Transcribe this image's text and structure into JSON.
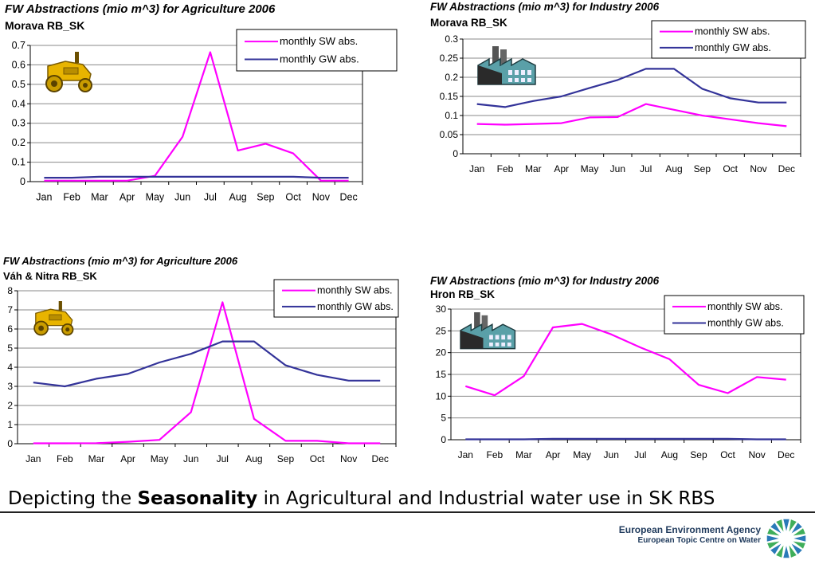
{
  "caption": {
    "prefix": "Depicting the ",
    "bold": "Seasonality",
    "suffix": " in Agricultural and Industrial water use in SK RBS"
  },
  "footer": {
    "agency": "European Environment Agency",
    "centre": "European Topic Centre on Water"
  },
  "colors": {
    "sw": "#ff00ff",
    "gw": "#333399"
  },
  "icons": {
    "agriculture": "tractor-icon",
    "industry": "factory-icon"
  },
  "chart_data": [
    {
      "type": "line",
      "title": "FW Abstractions (mio m^3) for Agriculture  2006",
      "subtitle": "Morava RB_SK",
      "categories": [
        "Jan",
        "Feb",
        "Mar",
        "Apr",
        "May",
        "Jun",
        "Jul",
        "Aug",
        "Sep",
        "Oct",
        "Nov",
        "Dec"
      ],
      "ylim": [
        0,
        0.7
      ],
      "yticks": [
        "0",
        "0.1",
        "0.2",
        "0.3",
        "0.4",
        "0.5",
        "0.6",
        "0.7"
      ],
      "grid": true,
      "legend_position": "top-right",
      "series": [
        {
          "name": "monthly SW abs.",
          "values": [
            0.005,
            0.005,
            0.005,
            0.005,
            0.03,
            0.23,
            0.665,
            0.16,
            0.195,
            0.145,
            0.005,
            0.005
          ]
        },
        {
          "name": "monthly GW abs.",
          "values": [
            0.02,
            0.02,
            0.025,
            0.025,
            0.025,
            0.025,
            0.025,
            0.025,
            0.025,
            0.025,
            0.02,
            0.02
          ]
        }
      ]
    },
    {
      "type": "line",
      "title": "FW Abstractions (mio m^3) for Industry  2006",
      "subtitle": "Morava RB_SK",
      "categories": [
        "Jan",
        "Feb",
        "Mar",
        "Apr",
        "May",
        "Jun",
        "Jul",
        "Aug",
        "Sep",
        "Oct",
        "Nov",
        "Dec"
      ],
      "ylim": [
        0,
        0.3
      ],
      "yticks": [
        "0",
        "0.05",
        "0.1",
        "0.15",
        "0.2",
        "0.25",
        "0.3"
      ],
      "grid": true,
      "legend_position": "top-right",
      "series": [
        {
          "name": "monthly SW abs.",
          "values": [
            0.078,
            0.076,
            0.078,
            0.08,
            0.095,
            0.096,
            0.13,
            0.115,
            0.1,
            0.09,
            0.08,
            0.072
          ]
        },
        {
          "name": "monthly GW abs.",
          "values": [
            0.13,
            0.122,
            0.138,
            0.15,
            0.172,
            0.193,
            0.222,
            0.222,
            0.17,
            0.145,
            0.134,
            0.134
          ]
        }
      ]
    },
    {
      "type": "line",
      "title": "FW Abstractions (mio m^3) for Agriculture 2006",
      "subtitle": "Váh & Nitra RB_SK",
      "categories": [
        "Jan",
        "Feb",
        "Mar",
        "Apr",
        "May",
        "Jun",
        "Jul",
        "Aug",
        "Sep",
        "Oct",
        "Nov",
        "Dec"
      ],
      "ylim": [
        0,
        8
      ],
      "yticks": [
        "0",
        "1",
        "2",
        "3",
        "4",
        "5",
        "6",
        "7",
        "8"
      ],
      "grid": true,
      "legend_position": "top-right",
      "series": [
        {
          "name": "monthly SW abs.",
          "values": [
            0.02,
            0.02,
            0.03,
            0.1,
            0.2,
            1.65,
            7.4,
            1.3,
            0.15,
            0.15,
            0.02,
            0.02
          ]
        },
        {
          "name": "monthly GW abs.",
          "values": [
            3.2,
            3.0,
            3.4,
            3.65,
            4.25,
            4.7,
            5.35,
            5.35,
            4.1,
            3.6,
            3.3,
            3.3
          ]
        }
      ]
    },
    {
      "type": "line",
      "title": "FW Abstractions (mio m^3)  for Industry 2006",
      "subtitle": "Hron RB_SK",
      "categories": [
        "Jan",
        "Feb",
        "Mar",
        "Apr",
        "May",
        "Jun",
        "Jul",
        "Aug",
        "Sep",
        "Oct",
        "Nov",
        "Dec"
      ],
      "ylim": [
        0,
        30
      ],
      "yticks": [
        "0",
        "5",
        "10",
        "15",
        "20",
        "25",
        "30"
      ],
      "grid": true,
      "legend_position": "top-right",
      "series": [
        {
          "name": "monthly SW abs.",
          "values": [
            12.3,
            10.2,
            14.6,
            25.8,
            26.6,
            24.2,
            21.2,
            18.5,
            12.6,
            10.7,
            14.4,
            13.8
          ]
        },
        {
          "name": "monthly GW abs.",
          "values": [
            0.1,
            0.1,
            0.1,
            0.2,
            0.2,
            0.2,
            0.2,
            0.2,
            0.2,
            0.2,
            0.1,
            0.1
          ]
        }
      ]
    }
  ]
}
